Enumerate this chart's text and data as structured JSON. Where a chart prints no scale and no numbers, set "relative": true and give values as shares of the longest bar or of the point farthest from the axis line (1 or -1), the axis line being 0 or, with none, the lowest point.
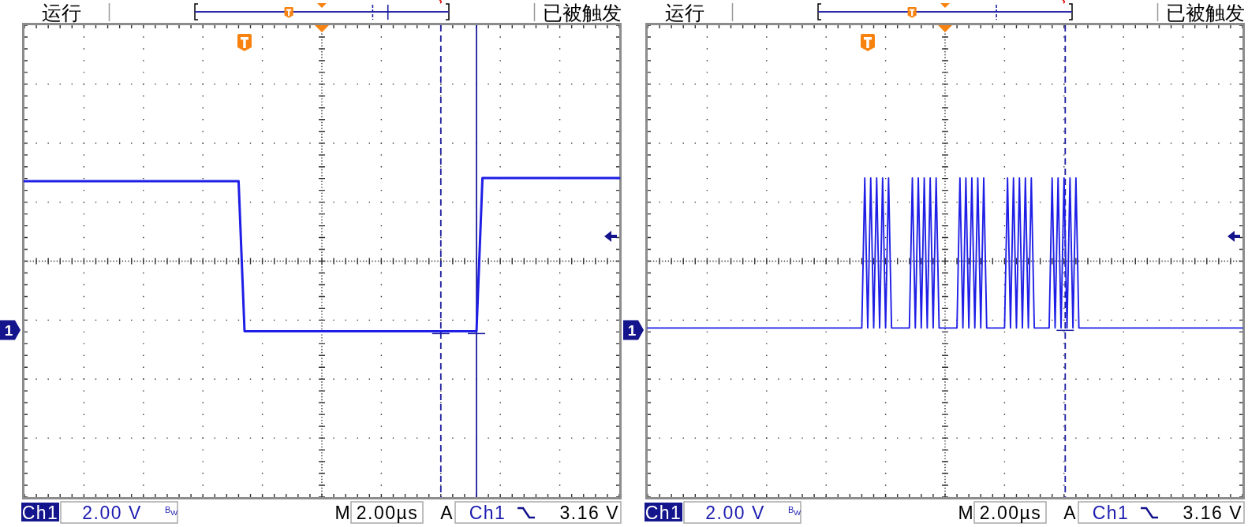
{
  "chart_data": [
    {
      "type": "line",
      "relative": true,
      "grid": true,
      "categories": [
        null,
        null,
        null,
        null,
        null,
        null,
        null,
        null,
        null,
        null,
        null,
        null,
        null,
        null,
        null,
        null,
        null,
        null,
        null,
        null,
        null,
        null,
        null,
        null,
        null,
        null,
        null,
        null,
        null,
        null,
        null,
        null,
        null,
        null,
        null,
        null,
        null,
        null,
        null,
        null,
        null,
        null,
        null,
        null,
        null,
        null,
        null,
        null,
        null,
        null,
        null,
        null,
        null,
        null,
        null,
        null,
        null,
        null,
        null,
        null,
        null,
        null,
        null,
        null,
        null,
        null,
        null,
        null,
        null,
        null,
        null,
        null,
        null,
        null,
        null,
        null,
        null,
        null,
        null,
        null,
        null,
        null,
        null,
        null,
        null,
        null,
        null,
        null,
        null,
        null,
        null,
        null,
        null,
        null,
        null,
        null,
        null,
        null,
        null,
        null,
        null
      ],
      "series": [
        {
          "color": "#1e1ee6",
          "values": [
            0.99,
            0.99,
            0.99,
            0.99,
            0.99,
            0.99,
            0.99,
            0.99,
            0.99,
            0.99,
            0.99,
            0.99,
            0.99,
            0.99,
            0.99,
            0.99,
            0.99,
            0.99,
            0.99,
            0.99,
            0.99,
            0.99,
            0.99,
            0.99,
            0.99,
            0.99,
            0.99,
            0.99,
            0.99,
            0.99,
            0.99,
            0.99,
            0.99,
            0.99,
            0.99,
            0.99,
            0.99,
            0.52,
            0.52,
            0.52,
            0.52,
            0.52,
            0.52,
            0.52,
            0.52,
            0.52,
            0.52,
            0.52,
            0.52,
            0.52,
            0.52,
            0.52,
            0.52,
            0.52,
            0.52,
            0.52,
            0.52,
            0.52,
            0.52,
            0.52,
            0.52,
            0.52,
            0.52,
            0.52,
            0.52,
            0.52,
            0.52,
            0.52,
            0.52,
            0.52,
            0.52,
            0.52,
            0.52,
            0.52,
            0.52,
            0.52,
            0.52,
            1,
            1,
            1,
            1,
            1,
            1,
            1,
            1,
            1,
            1,
            1,
            1,
            1,
            1,
            1,
            1,
            1,
            1,
            1,
            1,
            1,
            1,
            1,
            1
          ]
        }
      ],
      "annotations": [
        "运行",
        "已被触发",
        "Ch1",
        "2.00 V",
        "B$_{W}$",
        "M",
        "2.00µs",
        "A",
        "Ch1",
        "3.16 V",
        "1"
      ]
    },
    {
      "type": "line",
      "relative": true,
      "grid": true,
      "categories": [
        null,
        null,
        null,
        null,
        null,
        null,
        null,
        null,
        null,
        null,
        null,
        null,
        null,
        null,
        null,
        null,
        null,
        null,
        null,
        null,
        null,
        null,
        null,
        null,
        null,
        null,
        null,
        null,
        null,
        null,
        null,
        null,
        null,
        null,
        null,
        null,
        null,
        null,
        null,
        null,
        null,
        null,
        null,
        null,
        null,
        null,
        null,
        null,
        null,
        null,
        null,
        null,
        null,
        null,
        null,
        null,
        null,
        null,
        null,
        null,
        null,
        null,
        null,
        null,
        null,
        null,
        null,
        null,
        null,
        null,
        null,
        null,
        null,
        null,
        null,
        null,
        null,
        null,
        null,
        null,
        null,
        null,
        null,
        null,
        null,
        null,
        null,
        null,
        null,
        null,
        null,
        null,
        null,
        null,
        null,
        null,
        null,
        null,
        null,
        null,
        null,
        null,
        null,
        null,
        null,
        null,
        null,
        null,
        null,
        null,
        null,
        null,
        null,
        null,
        null,
        null,
        null,
        null,
        null,
        null,
        null,
        null,
        null,
        null,
        null,
        null,
        null,
        null,
        null,
        null,
        null,
        null,
        null,
        null,
        null,
        null,
        null,
        null,
        null,
        null,
        null,
        null,
        null,
        null,
        null,
        null,
        null,
        null,
        null,
        null,
        null,
        null,
        null,
        null,
        null,
        null,
        null,
        null,
        null,
        null,
        null,
        null,
        null,
        null,
        null,
        null,
        null,
        null,
        null,
        null,
        null,
        null,
        null,
        null,
        null,
        null,
        null,
        null,
        null,
        null,
        null,
        null,
        null,
        null,
        null,
        null,
        null,
        null,
        null,
        null,
        null,
        null,
        null,
        null,
        null,
        null,
        null,
        null,
        null,
        null,
        null
      ],
      "series": [
        {
          "color": "#1e1ee6",
          "values": [
            0.53,
            0.53,
            0.53,
            0.53,
            0.53,
            0.53,
            0.53,
            0.53,
            0.53,
            0.53,
            0.53,
            0.53,
            0.53,
            0.53,
            0.53,
            0.53,
            0.53,
            0.53,
            0.53,
            0.53,
            0.53,
            0.53,
            0.53,
            0.53,
            0.53,
            0.53,
            0.53,
            0.53,
            0.53,
            0.53,
            0.53,
            0.53,
            0.53,
            0.53,
            0.53,
            0.53,
            0.53,
            0.53,
            0.53,
            0.53,
            0.53,
            0.53,
            0.53,
            0.53,
            0.53,
            0.53,
            0.53,
            0.53,
            0.53,
            0.53,
            0.53,
            0.53,
            0.53,
            0.53,
            0.53,
            0.53,
            0.53,
            0.53,
            0.53,
            0.53,
            0.53,
            0.53,
            0.53,
            0.53,
            0.53,
            0.53,
            0.53,
            0.53,
            0.53,
            0.53,
            0.53,
            0.53,
            0.53,
            1,
            0.53,
            1,
            0.53,
            1,
            0.53,
            1,
            0.53,
            1,
            0.53,
            0.53,
            0.53,
            0.53,
            0.53,
            0.53,
            0.53,
            1,
            0.53,
            1,
            0.53,
            1,
            0.53,
            1,
            0.53,
            1,
            0.53,
            0.53,
            0.53,
            0.53,
            0.53,
            0.53,
            0.53,
            1,
            0.53,
            1,
            0.53,
            1,
            0.53,
            1,
            0.53,
            1,
            0.53,
            0.53,
            0.53,
            0.53,
            0.53,
            0.53,
            0.53,
            1,
            0.53,
            1,
            0.53,
            1,
            0.53,
            1,
            0.53,
            1,
            0.53,
            0.53,
            0.53,
            0.53,
            0.53,
            0.53,
            1,
            0.53,
            1,
            0.53,
            1,
            0.53,
            1,
            0.53,
            1,
            0.53,
            0.53,
            0.53,
            0.53,
            0.53,
            0.53,
            0.53,
            0.53,
            0.53,
            0.53,
            0.53,
            0.53,
            0.53,
            0.53,
            0.53,
            0.53,
            0.53,
            0.53,
            0.53,
            0.53,
            0.53,
            0.53,
            0.53,
            0.53,
            0.53,
            0.53,
            0.53,
            0.53,
            0.53,
            0.53,
            0.53,
            0.53,
            0.53,
            0.53,
            0.53,
            0.53,
            0.53,
            0.53,
            0.53,
            0.53,
            0.53,
            0.53,
            0.53,
            0.53,
            0.53,
            0.53,
            0.53,
            0.53,
            0.53,
            0.53,
            0.53,
            0.53,
            0.53,
            0.53,
            0.53,
            0.53
          ]
        }
      ],
      "annotations": [
        "运行",
        "已被触发",
        "Ch1",
        "2.00 V",
        "B$_{W}$",
        "M",
        "2.00µs",
        "A",
        "Ch1",
        "3.16 V",
        "1"
      ]
    }
  ]
}
